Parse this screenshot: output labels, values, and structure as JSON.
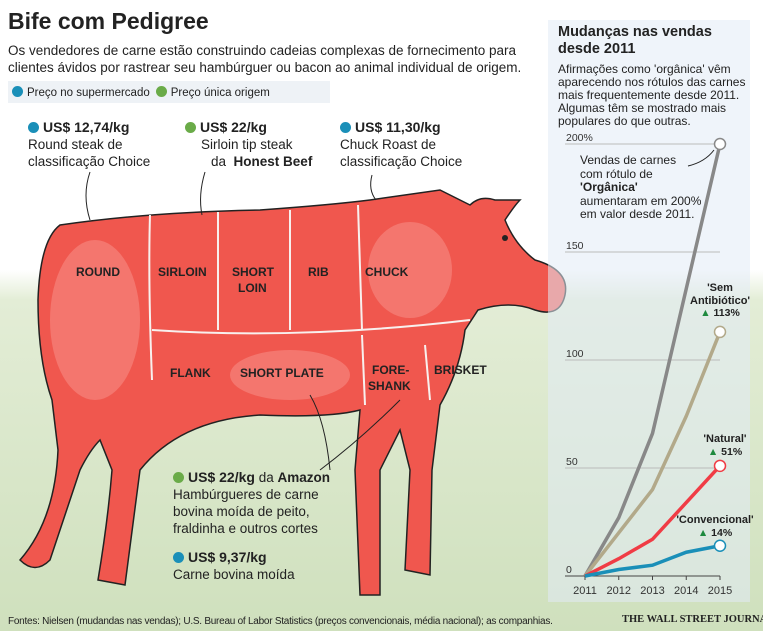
{
  "title": "Bife com Pedigree",
  "subtitle": "Os vendedores de carne estão construindo cadeias complexas de fornecimento para clientes ávidos por rastrear seu hambúrguer ou bacon ao animal individual de origem.",
  "legend": {
    "supermarket": "Preço no supermercado",
    "single_origin": "Preço única origem"
  },
  "colors": {
    "supermarket": "#1a8fb8",
    "single_origin": "#6aab48",
    "cow": "#f0574e"
  },
  "callouts": [
    {
      "price": "US$ 12,74/kg",
      "line1": "Round steak de",
      "line2": "classificação Choice",
      "type": "supermarket"
    },
    {
      "price": "US$ 22/kg",
      "line1": "Sirloin tip steak",
      "line2_pre": "da",
      "line2_bold": "Honest Beef",
      "type": "single_origin"
    },
    {
      "price": "US$ 11,30/kg",
      "line1": "Chuck Roast de",
      "line2": "classificação Choice",
      "type": "supermarket"
    },
    {
      "price": "US$ 22/kg",
      "price_suffix": "da",
      "brand": "Amazon",
      "line1": "Hambúrgueres de carne",
      "line2": "bovina moída de peito,",
      "line3": "fraldinha e outros cortes",
      "type": "single_origin"
    },
    {
      "price": "US$ 9,37/kg",
      "line1": "Carne bovina moída",
      "type": "supermarket"
    }
  ],
  "cuts": {
    "round": "ROUND",
    "sirloin": "SIRLOIN",
    "short_loin_1": "SHORT",
    "short_loin_2": "LOIN",
    "rib": "RIB",
    "chuck": "CHUCK",
    "flank": "FLANK",
    "short_plate": "SHORT PLATE",
    "foreshank_1": "FORE-",
    "foreshank_2": "SHANK",
    "brisket": "BRISKET"
  },
  "panel": {
    "title": "Mudanças nas vendas desde 2011",
    "description": "Afirmações como 'orgânica' vêm aparecendo nos rótulos das carnes mais frequentemente desde 2011. Algumas têm se mostrado mais populares do que outras.",
    "note_pre": "Vendas de carnes com rótulo de",
    "note_bold": "'Orgânica'",
    "note_post": "aumentaram em 200% em valor desde 2011."
  },
  "chart_data": {
    "type": "line",
    "x": [
      2011,
      2012,
      2013,
      2014,
      2015
    ],
    "ylim": [
      0,
      200
    ],
    "yticks": [
      {
        "v": 0,
        "label": "0"
      },
      {
        "v": 50,
        "label": "50"
      },
      {
        "v": 100,
        "label": "100"
      },
      {
        "v": 150,
        "label": "150"
      },
      {
        "v": 200,
        "label": "200%"
      }
    ],
    "series": [
      {
        "name": "'Orgânica'",
        "color": "#888888",
        "values": [
          0,
          27,
          66,
          133,
          200
        ],
        "change": "200%"
      },
      {
        "name": "'Sem Antibiótico'",
        "color": "#b2a98a",
        "values": [
          0,
          20,
          40,
          74,
          113
        ],
        "change": "113%"
      },
      {
        "name": "'Natural'",
        "color": "#f03c45",
        "values": [
          0,
          8,
          17,
          34,
          51
        ],
        "change": "51%"
      },
      {
        "name": "'Convencional'",
        "color": "#1a8fb8",
        "values": [
          0,
          3,
          5,
          11,
          14
        ],
        "change": "14%"
      }
    ]
  },
  "footer": "Fontes: Nielsen (mudandas nas vendas); U.S. Bureau of Labor Statistics (preços convencionais, média nacional); as companhias.",
  "source_logo": "THE WALL STREET JOURNAL."
}
